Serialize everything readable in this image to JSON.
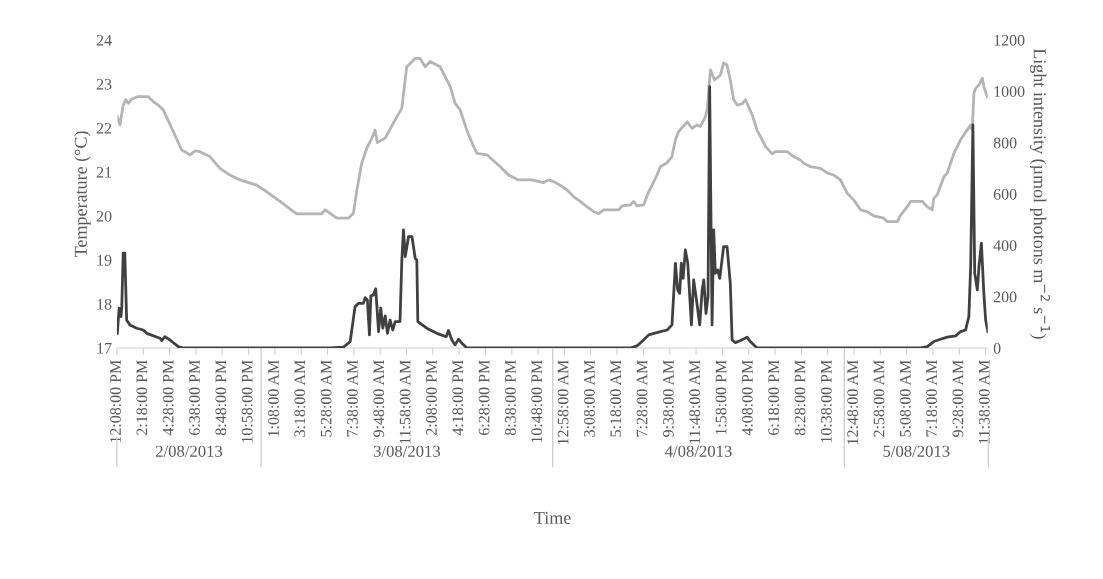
{
  "chart_data": {
    "type": "line",
    "xlabel": "Time",
    "ylabel": "Temperature (°C)",
    "y2label": "Light intensity (µmol photons m$^{−2}$ s$^{−1}$)",
    "xlim": [
      "2013-08-02T12:08",
      "2013-08-05T11:51"
    ],
    "xticks": [
      {
        "value": "2013-08-02T12:08",
        "label": "12:08:00 PM"
      },
      {
        "value": "2013-08-02T14:18",
        "label": "2:18:00 PM"
      },
      {
        "value": "2013-08-02T16:28",
        "label": "4:28:00 PM"
      },
      {
        "value": "2013-08-02T18:38",
        "label": "6:38:00 PM"
      },
      {
        "value": "2013-08-02T20:48",
        "label": "8:48:00 PM"
      },
      {
        "value": "2013-08-02T22:58",
        "label": "10:58:00 PM"
      },
      {
        "value": "2013-08-03T01:08",
        "label": "1:08:00 AM"
      },
      {
        "value": "2013-08-03T03:18",
        "label": "3:18:00 AM"
      },
      {
        "value": "2013-08-03T05:28",
        "label": "5:28:00 AM"
      },
      {
        "value": "2013-08-03T07:38",
        "label": "7:38:00 AM"
      },
      {
        "value": "2013-08-03T09:48",
        "label": "9:48:00 AM"
      },
      {
        "value": "2013-08-03T11:58",
        "label": "11:58:00 AM"
      },
      {
        "value": "2013-08-03T14:08",
        "label": "2:08:00 PM"
      },
      {
        "value": "2013-08-03T16:18",
        "label": "4:18:00 PM"
      },
      {
        "value": "2013-08-03T18:28",
        "label": "6:28:00 PM"
      },
      {
        "value": "2013-08-03T20:38",
        "label": "8:38:00 PM"
      },
      {
        "value": "2013-08-03T22:48",
        "label": "10:48:00 PM"
      },
      {
        "value": "2013-08-04T00:58",
        "label": "12:58:00 AM"
      },
      {
        "value": "2013-08-04T03:08",
        "label": "3:08:00 AM"
      },
      {
        "value": "2013-08-04T05:18",
        "label": "5:18:00 AM"
      },
      {
        "value": "2013-08-04T07:28",
        "label": "7:28:00 AM"
      },
      {
        "value": "2013-08-04T09:38",
        "label": "9:38:00 AM"
      },
      {
        "value": "2013-08-04T11:48",
        "label": "11:48:00 AM"
      },
      {
        "value": "2013-08-04T13:58",
        "label": "1:58:00 PM"
      },
      {
        "value": "2013-08-04T16:08",
        "label": "4:08:00 PM"
      },
      {
        "value": "2013-08-04T18:18",
        "label": "6:18:00 PM"
      },
      {
        "value": "2013-08-04T20:28",
        "label": "8:28:00 PM"
      },
      {
        "value": "2013-08-04T22:38",
        "label": "10:38:00 PM"
      },
      {
        "value": "2013-08-05T00:48",
        "label": "12:48:00 AM"
      },
      {
        "value": "2013-08-05T02:58",
        "label": "2:58:00 AM"
      },
      {
        "value": "2013-08-05T05:08",
        "label": "5:08:00 AM"
      },
      {
        "value": "2013-08-05T07:18",
        "label": "7:18:00 AM"
      },
      {
        "value": "2013-08-05T09:28",
        "label": "9:28:00 AM"
      },
      {
        "value": "2013-08-05T11:38",
        "label": "11:38:00 AM"
      }
    ],
    "ylim": [
      17,
      24
    ],
    "yticks": [
      17,
      18,
      19,
      20,
      21,
      22,
      23,
      24
    ],
    "y2lim": [
      0,
      1200
    ],
    "y2ticks": [
      0,
      200,
      400,
      600,
      800,
      1000,
      1200
    ],
    "grid": false,
    "legend": false,
    "annotations": [
      "2/08/2013",
      "3/08/2013",
      "4/08/2013",
      "5/08/2013"
    ],
    "series": [
      {
        "color": "#b4b4b4",
        "x": [
          "2013-08-02T12:10",
          "2013-08-02T12:23",
          "2013-08-02T12:39",
          "2013-08-02T12:52",
          "2013-08-02T13:04",
          "2013-08-02T13:20",
          "2013-08-02T13:49",
          "2013-08-02T14:43",
          "2013-08-02T15:07",
          "2013-08-02T15:32",
          "2013-08-02T15:57",
          "2013-08-02T17:28",
          "2013-08-02T18:09",
          "2013-08-02T18:34",
          "2013-08-02T18:58",
          "2013-08-02T19:47",
          "2013-08-02T20:37",
          "2013-08-02T21:26",
          "2013-08-02T22:16",
          "2013-08-02T23:38",
          "2013-08-03T00:28",
          "2013-08-03T01:34",
          "2013-08-03T02:40",
          "2013-08-03T02:56",
          "2013-08-03T04:59",
          "2013-08-03T05:16",
          "2013-08-03T05:41",
          "2013-08-03T06:14",
          "2013-08-03T07:11",
          "2013-08-03T07:36",
          "2013-08-03T07:53",
          "2013-08-03T08:17",
          "2013-08-03T08:42",
          "2013-08-03T09:07",
          "2013-08-03T09:23",
          "2013-08-03T09:34",
          "2013-08-03T10:13",
          "2013-08-03T10:53",
          "2013-08-03T11:35",
          "2013-08-03T11:59",
          "2013-08-03T12:41",
          "2013-08-03T13:05",
          "2013-08-03T13:30",
          "2013-08-03T13:55",
          "2013-08-03T14:44",
          "2013-08-03T15:34",
          "2013-08-03T15:58",
          "2013-08-03T16:23",
          "2013-08-03T16:56",
          "2013-08-03T17:29",
          "2013-08-03T17:46",
          "2013-08-03T18:35",
          "2013-08-03T19:41",
          "2013-08-03T20:22",
          "2013-08-03T21:11",
          "2013-08-03T22:17",
          "2013-08-03T23:15",
          "2013-08-03T23:40",
          "2013-08-04T00:04",
          "2013-08-04T00:37",
          "2013-08-04T01:11",
          "2013-08-04T01:43",
          "2013-08-04T02:16",
          "2013-08-04T02:49",
          "2013-08-04T03:22",
          "2013-08-04T03:47",
          "2013-08-04T04:11",
          "2013-08-04T05:26",
          "2013-08-04T05:43",
          "2013-08-04T06:23",
          "2013-08-04T06:40",
          "2013-08-04T06:56",
          "2013-08-04T07:29",
          "2013-08-04T07:54",
          "2013-08-04T08:35",
          "2013-08-04T08:52",
          "2013-08-04T09:25",
          "2013-08-04T09:49",
          "2013-08-04T10:06",
          "2013-08-04T10:22",
          "2013-08-04T11:04",
          "2013-08-04T11:28",
          "2013-08-04T11:53",
          "2013-08-04T12:09",
          "2013-08-04T12:34",
          "2013-08-04T12:43",
          "2013-08-04T12:59",
          "2013-08-04T13:19",
          "2013-08-04T13:48",
          "2013-08-04T14:04",
          "2013-08-04T14:21",
          "2013-08-04T14:37",
          "2013-08-04T14:54",
          "2013-08-04T15:11",
          "2013-08-04T15:35",
          "2013-08-04T15:52",
          "2013-08-04T16:25",
          "2013-08-04T16:49",
          "2013-08-04T17:31",
          "2013-08-04T18:04",
          "2013-08-04T18:20",
          "2013-08-04T19:18",
          "2013-08-04T19:50",
          "2013-08-04T20:23",
          "2013-08-04T20:40",
          "2013-08-04T21:13",
          "2013-08-04T22:02",
          "2013-08-04T22:35",
          "2013-08-04T23:08",
          "2013-08-04T23:41",
          "2013-08-05T00:14",
          "2013-08-05T00:47",
          "2013-08-05T01:20",
          "2013-08-05T01:53",
          "2013-08-05T02:26",
          "2013-08-05T03:15",
          "2013-08-05T03:32",
          "2013-08-05T04:22",
          "2013-08-05T04:38",
          "2013-08-05T05:11",
          "2013-08-05T05:27",
          "2013-08-05T06:25",
          "2013-08-05T06:50",
          "2013-08-05T07:14",
          "2013-08-05T07:22",
          "2013-08-05T07:39",
          "2013-08-05T08:12",
          "2013-08-05T08:28",
          "2013-08-05T09:01",
          "2013-08-05T09:34",
          "2013-08-05T10:24",
          "2013-08-05T10:32",
          "2013-08-05T10:40",
          "2013-08-05T10:49",
          "2013-08-05T11:05",
          "2013-08-05T11:22",
          "2013-08-05T11:29",
          "2013-08-05T11:46"
        ],
        "values": [
          22.26,
          22.07,
          22.52,
          22.64,
          22.56,
          22.65,
          22.71,
          22.71,
          22.6,
          22.52,
          22.41,
          21.5,
          21.39,
          21.48,
          21.46,
          21.35,
          21.08,
          20.93,
          20.82,
          20.7,
          20.55,
          20.33,
          20.1,
          20.05,
          20.05,
          20.14,
          20.06,
          19.95,
          19.95,
          20.06,
          20.59,
          21.2,
          21.54,
          21.77,
          21.95,
          21.67,
          21.77,
          22.11,
          22.45,
          23.39,
          23.58,
          23.58,
          23.39,
          23.51,
          23.39,
          22.94,
          22.56,
          22.41,
          21.95,
          21.58,
          21.42,
          21.39,
          21.12,
          20.93,
          20.82,
          20.82,
          20.76,
          20.82,
          20.78,
          20.7,
          20.59,
          20.44,
          20.33,
          20.21,
          20.1,
          20.05,
          20.14,
          20.14,
          20.23,
          20.25,
          20.33,
          20.23,
          20.25,
          20.55,
          20.93,
          21.12,
          21.21,
          21.35,
          21.73,
          21.92,
          22.14,
          21.99,
          22.07,
          22.03,
          22.26,
          22.41,
          23.32,
          23.09,
          23.2,
          23.48,
          23.43,
          23.09,
          22.64,
          22.52,
          22.55,
          22.64,
          22.3,
          21.95,
          21.58,
          21.41,
          21.46,
          21.46,
          21.35,
          21.27,
          21.2,
          21.12,
          21.08,
          20.98,
          20.93,
          20.82,
          20.52,
          20.36,
          20.14,
          20.1,
          20.0,
          19.95,
          19.87,
          19.87,
          20.02,
          20.21,
          20.33,
          20.33,
          20.21,
          20.14,
          20.4,
          20.48,
          20.89,
          20.97,
          21.42,
          21.73,
          22.07,
          21.95,
          22.79,
          22.9,
          22.98,
          23.13,
          22.94,
          22.71
        ]
      },
      {
        "color": "#404040",
        "axis": "y2",
        "x": [
          "2013-08-02T12:10",
          "2013-08-02T12:19",
          "2013-08-02T12:28",
          "2013-08-02T12:32",
          "2013-08-02T12:39",
          "2013-08-02T12:47",
          "2013-08-02T12:56",
          "2013-08-02T13:12",
          "2013-08-02T13:46",
          "2013-08-02T14:18",
          "2013-08-02T14:35",
          "2013-08-02T15:41",
          "2013-08-02T15:49",
          "2013-08-02T16:05",
          "2013-08-02T16:30",
          "2013-08-02T17:11",
          "2013-08-02T17:35",
          "2013-08-03T05:41",
          "2013-08-03T06:46",
          "2013-08-03T07:20",
          "2013-08-03T07:44",
          "2013-08-03T08:01",
          "2013-08-03T08:25",
          "2013-08-03T08:34",
          "2013-08-03T08:45",
          "2013-08-03T08:55",
          "2013-08-03T09:02",
          "2013-08-03T09:14",
          "2013-08-03T09:26",
          "2013-08-03T09:40",
          "2013-08-03T09:51",
          "2013-08-03T10:01",
          "2013-08-03T10:13",
          "2013-08-03T10:24",
          "2013-08-03T10:37",
          "2013-08-03T10:50",
          "2013-08-03T11:02",
          "2013-08-03T11:26",
          "2013-08-03T11:35",
          "2013-08-03T11:43",
          "2013-08-03T11:52",
          "2013-08-03T12:08",
          "2013-08-03T12:25",
          "2013-08-03T12:41",
          "2013-08-03T12:49",
          "2013-08-03T12:54",
          "2013-08-03T13:38",
          "2013-08-03T14:28",
          "2013-08-03T15:14",
          "2013-08-03T15:25",
          "2013-08-03T15:42",
          "2013-08-03T15:58",
          "2013-08-03T16:15",
          "2013-08-03T16:32",
          "2013-08-03T16:56",
          "2013-08-04T06:23",
          "2013-08-04T06:56",
          "2013-08-04T07:29",
          "2013-08-04T07:54",
          "2013-08-04T08:52",
          "2013-08-04T09:25",
          "2013-08-04T09:49",
          "2013-08-04T10:06",
          "2013-08-04T10:17",
          "2013-08-04T10:27",
          "2013-08-04T10:35",
          "2013-08-04T10:44",
          "2013-08-04T10:55",
          "2013-08-04T11:07",
          "2013-08-04T11:25",
          "2013-08-04T11:36",
          "2013-08-04T11:50",
          "2013-08-04T12:06",
          "2013-08-04T12:18",
          "2013-08-04T12:26",
          "2013-08-04T12:37",
          "2013-08-04T12:47",
          "2013-08-04T12:55",
          "2013-08-04T13:07",
          "2013-08-04T13:15",
          "2013-08-04T13:23",
          "2013-08-04T13:35",
          "2013-08-04T13:45",
          "2013-08-04T14:04",
          "2013-08-04T14:21",
          "2013-08-04T14:37",
          "2013-08-04T14:46",
          "2013-08-04T15:02",
          "2013-08-04T15:27",
          "2013-08-04T16:00",
          "2013-08-04T16:16",
          "2013-08-04T16:49",
          "2013-08-05T06:17",
          "2013-08-05T06:50",
          "2013-08-05T07:22",
          "2013-08-05T07:55",
          "2013-08-05T08:28",
          "2013-08-05T09:10",
          "2013-08-05T09:34",
          "2013-08-05T09:59",
          "2013-08-05T10:15",
          "2013-08-05T10:24",
          "2013-08-05T10:35",
          "2013-08-05T10:44",
          "2013-08-05T10:57",
          "2013-08-05T11:05",
          "2013-08-05T11:17",
          "2013-08-05T11:29",
          "2013-08-05T11:38",
          "2013-08-05T11:49"
        ],
        "values": [
          57,
          155,
          122,
          161,
          369,
          369,
          109,
          90,
          77,
          70,
          57,
          38,
          29,
          44,
          31,
          5,
          0,
          0,
          3,
          25,
          161,
          174,
          174,
          196,
          187,
          51,
          203,
          206,
          231,
          64,
          155,
          77,
          125,
          57,
          109,
          70,
          103,
          103,
          343,
          460,
          356,
          434,
          434,
          349,
          343,
          103,
          77,
          57,
          44,
          68,
          31,
          12,
          34,
          18,
          0,
          0,
          8,
          31,
          51,
          64,
          70,
          90,
          330,
          226,
          213,
          330,
          271,
          382,
          330,
          90,
          265,
          187,
          90,
          226,
          265,
          135,
          200,
          1018,
          90,
          460,
          291,
          304,
          271,
          395,
          395,
          252,
          31,
          21,
          29,
          42,
          25,
          0,
          0,
          5,
          25,
          34,
          42,
          47,
          64,
          70,
          122,
          317,
          869,
          291,
          226,
          317,
          408,
          213,
          109,
          64
        ]
      }
    ]
  }
}
